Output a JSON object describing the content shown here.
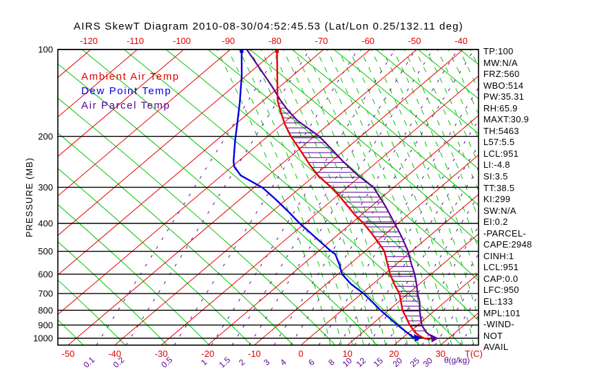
{
  "title": "AIRS SkewT Diagram 2010-08-30/04:52:45.53 (Lat/Lon 0.25/132.11 deg)",
  "colors": {
    "isotherm": "#e60000",
    "dry_adiabat": "#00c400",
    "moist_adiabat": "#00c400",
    "mixing_ratio": "#5a0096",
    "pressure_line": "#000000",
    "ambient": "#e60000",
    "dewpoint": "#0000e0",
    "parcel": "#5a0096",
    "hatch": "#5a0096",
    "tick_label_red": "#e00000",
    "tick_label_purple": "#5a0096"
  },
  "legend": [
    {
      "label": "Ambient Air Temp",
      "color": "#e00000"
    },
    {
      "label": "Dew Point Temp",
      "color": "#0000e0"
    },
    {
      "label": "Air Parcel Temp",
      "color": "#5a0096"
    }
  ],
  "stats_panel": {
    "lines": [
      "TP:100",
      "MW:N/A",
      "FRZ:560",
      "WBO:514",
      "PW:35.31",
      "RH:65.9",
      "MAXT:30.9",
      "TH:5463",
      "L57:5.5",
      "LCL:951",
      "LI:-4.8",
      "SI:3.5",
      "TT:38.5",
      "KI:299",
      "SW:N/A",
      "EI:0.2",
      "-PARCEL-",
      "CAPE:2948",
      "CINH:1",
      "LCL:951",
      "CAP:0.0",
      "LFC:950",
      "EL:133",
      "MPL:101",
      "-WIND-",
      "NOT",
      "AVAIL"
    ]
  },
  "chart_data": {
    "type": "line",
    "title": "AIRS SkewT Diagram 2010-08-30/04:52:45.53 (Lat/Lon 0.25/132.11 deg)",
    "y_axis": {
      "label": "PRESSURE (MB)",
      "scale": "log",
      "range": [
        100,
        1056
      ],
      "ticks": [
        100,
        200,
        300,
        400,
        500,
        600,
        700,
        800,
        900,
        1000
      ]
    },
    "x_axis_top": {
      "ticks": [
        -120,
        -110,
        -100,
        -90,
        -80,
        -70,
        -60,
        -50,
        -40
      ]
    },
    "x_axis_bottom": {
      "label": "T(C)",
      "ticks": [
        -50,
        -40,
        -30,
        -20,
        -10,
        0,
        10,
        20,
        30
      ]
    },
    "mixing_axis": {
      "label": "θ(g/kg)",
      "ticks": [
        0.1,
        0.2,
        0.5,
        1,
        1.5,
        2,
        3,
        4,
        6,
        8,
        10,
        12,
        15,
        20,
        25,
        30
      ]
    },
    "grid": {
      "isotherms_c": [
        -130,
        -120,
        -110,
        -100,
        -90,
        -80,
        -70,
        -60,
        -50,
        -40,
        -30,
        -20,
        -10,
        0,
        10,
        20,
        30
      ]
    },
    "series": [
      {
        "name": "Ambient Air Temp",
        "units": [
          "mb",
          "C"
        ],
        "points": [
          [
            100,
            -80.0
          ],
          [
            150,
            -67.0
          ],
          [
            162,
            -64.0
          ],
          [
            181,
            -59.5
          ],
          [
            200,
            -55.0
          ],
          [
            225,
            -49.1
          ],
          [
            251,
            -43.7
          ],
          [
            273,
            -39.3
          ],
          [
            296,
            -34.3
          ],
          [
            321,
            -29.6
          ],
          [
            349,
            -25.1
          ],
          [
            373,
            -21.5
          ],
          [
            400,
            -17.4
          ],
          [
            434,
            -13.0
          ],
          [
            470,
            -8.9
          ],
          [
            500,
            -5.8
          ],
          [
            541,
            -2.8
          ],
          [
            600,
            1.2
          ],
          [
            655,
            5.0
          ],
          [
            700,
            8.1
          ],
          [
            751,
            10.7
          ],
          [
            800,
            13.0
          ],
          [
            849,
            15.7
          ],
          [
            900,
            18.3
          ],
          [
            951,
            21.1
          ],
          [
            978,
            22.9
          ],
          [
            1000,
            24.7
          ],
          [
            1011,
            26.4
          ]
        ]
      },
      {
        "name": "Dew Point Temp",
        "units": [
          "mb",
          "C"
        ],
        "points": [
          [
            100,
            -87.6
          ],
          [
            123,
            -81.0
          ],
          [
            153,
            -74.5
          ],
          [
            181,
            -69.7
          ],
          [
            207,
            -65.9
          ],
          [
            244,
            -61.0
          ],
          [
            254,
            -59.6
          ],
          [
            273,
            -55.9
          ],
          [
            301,
            -48.1
          ],
          [
            330,
            -42.4
          ],
          [
            368,
            -35.9
          ],
          [
            400,
            -31.1
          ],
          [
            447,
            -24.2
          ],
          [
            498,
            -17.5
          ],
          [
            512,
            -15.6
          ],
          [
            556,
            -12.1
          ],
          [
            600,
            -9.1
          ],
          [
            648,
            -4.8
          ],
          [
            700,
            0.4
          ],
          [
            751,
            4.6
          ],
          [
            800,
            8.3
          ],
          [
            849,
            12.0
          ],
          [
            900,
            15.7
          ],
          [
            951,
            19.3
          ],
          [
            989,
            22.0
          ],
          [
            1011,
            23.9
          ]
        ]
      },
      {
        "name": "Air Parcel Temp",
        "units": [
          "mb",
          "C"
        ],
        "points": [
          [
            100,
            -86.5
          ],
          [
            117,
            -78.6
          ],
          [
            134,
            -71.8
          ],
          [
            149,
            -66.7
          ],
          [
            162,
            -62.4
          ],
          [
            176,
            -57.7
          ],
          [
            200,
            -48.9
          ],
          [
            225,
            -42.1
          ],
          [
            244,
            -37.5
          ],
          [
            273,
            -30.7
          ],
          [
            301,
            -24.2
          ],
          [
            349,
            -17.0
          ],
          [
            400,
            -10.7
          ],
          [
            447,
            -5.6
          ],
          [
            498,
            -0.9
          ],
          [
            556,
            3.4
          ],
          [
            600,
            6.5
          ],
          [
            655,
            9.7
          ],
          [
            700,
            12.0
          ],
          [
            751,
            14.7
          ],
          [
            800,
            16.7
          ],
          [
            849,
            18.8
          ],
          [
            900,
            20.9
          ],
          [
            951,
            23.5
          ],
          [
            1006,
            27.3
          ]
        ]
      }
    ],
    "hatch_between": [
      "Ambient Air Temp",
      "Air Parcel Temp"
    ]
  }
}
